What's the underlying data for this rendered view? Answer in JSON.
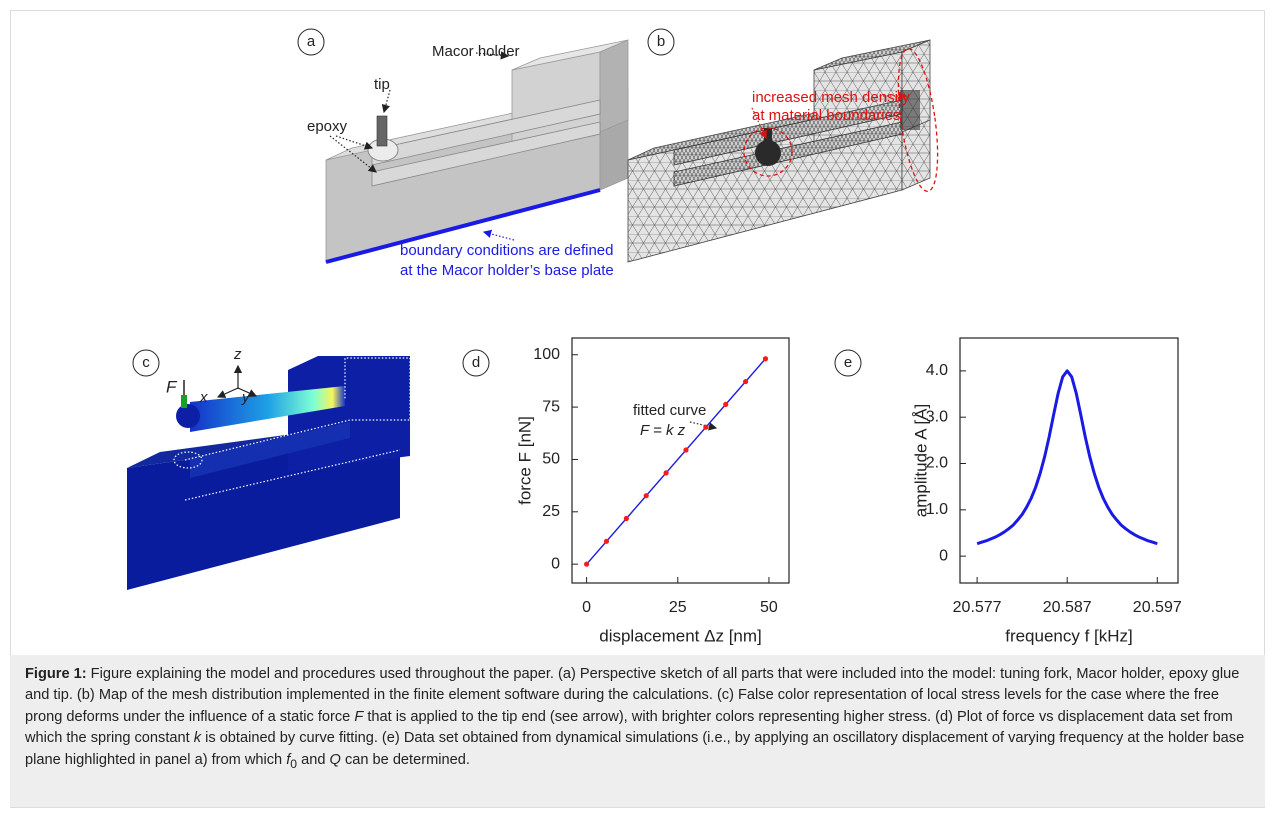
{
  "panels": {
    "letters": [
      "a",
      "b",
      "c",
      "d",
      "e"
    ],
    "a": {
      "holder": "Macor holder",
      "tip": "tip",
      "epoxy": "epoxy",
      "boundary": [
        "boundary conditions are defined",
        "at the Macor holder’s base plate"
      ]
    },
    "b": {
      "mesh": [
        "increased mesh density",
        "at material boundaries"
      ]
    },
    "c": {
      "axes": [
        "z",
        "x",
        "y"
      ],
      "force": "F"
    }
  },
  "chart_data": [
    {
      "type": "line",
      "xlabel": "displacement Δz [nm]",
      "ylabel": "force F [nN]",
      "xlim": [
        -4,
        55.5
      ],
      "ylim": [
        -9,
        108
      ],
      "xticks": [
        0,
        25,
        50
      ],
      "yticks": [
        0,
        25,
        50,
        75,
        100
      ],
      "annotations": [
        "fitted curve",
        "F = k z"
      ],
      "series": [
        {
          "mode": "line",
          "color": "#1a1ae6",
          "x": [
            0,
            49.05
          ],
          "values": [
            0,
            98.1
          ]
        },
        {
          "mode": "markers",
          "color": "#ff1a1a",
          "x": [
            0,
            5.45,
            10.9,
            16.35,
            21.8,
            27.25,
            32.7,
            38.15,
            43.6,
            49.05
          ],
          "values": [
            0,
            10.9,
            21.8,
            32.7,
            43.6,
            54.5,
            65.4,
            76.3,
            87.2,
            98.1
          ]
        }
      ]
    },
    {
      "type": "line",
      "xlabel": "frequency f [kHz]",
      "ylabel": "amplitude A [Å]",
      "xlim": [
        20.5751,
        20.5993
      ],
      "ylim": [
        -0.58,
        4.71
      ],
      "xticks": [
        20.577,
        20.587,
        20.597
      ],
      "yticks": [
        0,
        {
          "value": 1,
          "label": "1.0"
        },
        {
          "value": 2,
          "label": "2.0"
        },
        {
          "value": 3,
          "label": "3.0"
        },
        {
          "value": 4,
          "label": "4.0"
        }
      ],
      "x": [
        20.577,
        20.5775,
        20.578,
        20.5785,
        20.579,
        20.5795,
        20.58,
        20.5805,
        20.581,
        20.5815,
        20.582,
        20.5825,
        20.583,
        20.5835,
        20.584,
        20.5845,
        20.585,
        20.5855,
        20.586,
        20.5865,
        20.587,
        20.5875,
        20.588,
        20.5885,
        20.589,
        20.5895,
        20.59,
        20.5905,
        20.591,
        20.5915,
        20.592,
        20.5925,
        20.593,
        20.5935,
        20.594,
        20.5945,
        20.595,
        20.5955,
        20.596,
        20.5965,
        20.597
      ],
      "series": [
        {
          "mode": "line",
          "color": "#1a1ae6",
          "values": [
            0.27,
            0.3,
            0.33,
            0.37,
            0.41,
            0.46,
            0.52,
            0.59,
            0.67,
            0.78,
            0.9,
            1.06,
            1.25,
            1.49,
            1.79,
            2.15,
            2.58,
            3.06,
            3.52,
            3.87,
            4.0,
            3.87,
            3.52,
            3.06,
            2.58,
            2.15,
            1.79,
            1.49,
            1.25,
            1.06,
            0.9,
            0.78,
            0.67,
            0.59,
            0.52,
            0.46,
            0.41,
            0.37,
            0.33,
            0.3,
            0.27
          ]
        }
      ]
    }
  ],
  "caption": {
    "label": "Figure 1:",
    "parts": [
      " Figure explaining the model and procedures used throughout the paper. (a) Perspective sketch of all parts that were included into the model: tuning fork, Macor holder, epoxy glue and tip. (b) Map of the mesh distribution implemented in the finite element software during the calculations. (c) False color representation of local stress levels for the case where the free prong deforms under the influence of a static force ",
      "F",
      " that is applied to the tip end (see arrow), with brighter colors representing higher stress. (d) Plot of force vs displacement data set from which the spring constant ",
      "k",
      " is obtained by curve fitting. (e) Data set obtained from dynamical simulations (i.e., by applying an oscillatory displacement of varying frequency at the holder base plane highlighted in panel a) from which ",
      "f",
      "0",
      " and ",
      "Q",
      " can be determined."
    ]
  }
}
